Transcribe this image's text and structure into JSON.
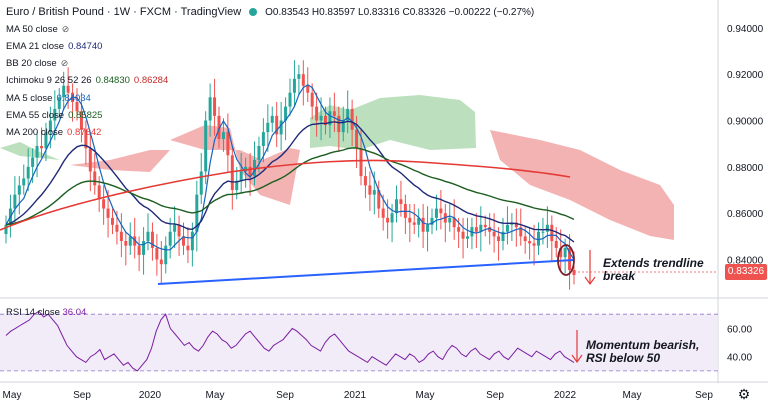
{
  "header": {
    "title": "Euro / British Pound · 1W · FXCM · TradingView",
    "ohlc": "O0.83543 H0.83597 L0.83316 C0.83326 −0.00222 (−0.27%)"
  },
  "legend": {
    "ma50": "MA 50 close",
    "ema21": "EMA 21 close",
    "ema21_val": "0.84740",
    "bb20": "BB 20 close",
    "ichimoku": "Ichimoku 9 26 52 26",
    "ichimoku_v1": "0.84830",
    "ichimoku_v2": "0.86284",
    "ma5": "MA 5 close",
    "ma5_val": "0.84034",
    "ema55": "EMA 55 close",
    "ema55_val": "0.85825",
    "ma200": "MA 200 close",
    "ma200_val": "0.87642"
  },
  "rsi_legend": {
    "name": "RSI 14 close",
    "val": "36.04"
  },
  "price_label": "0.83326",
  "annotations": {
    "trendline_1": "Extends trendline",
    "trendline_2": "break",
    "rsi_1": "Momentum bearish,",
    "rsi_2": "RSI below 50"
  },
  "colors": {
    "ema21": "#1e2a78",
    "ema55": "#1b5e20",
    "ma5": "#1565c0",
    "ma200": "#e53935",
    "trendline": "#2962ff",
    "cloud_bull": "#a5d6a7",
    "cloud_bear": "#ef9a9a",
    "rsi": "#7b1fa2",
    "up": "#26a69a",
    "down": "#ef5350",
    "price_label": "#ef5350",
    "annotation_arrow": "#e53935"
  },
  "chart_data": {
    "type": "candlestick",
    "x_ticks": [
      "May",
      "Sep",
      "2020",
      "May",
      "Sep",
      "2021",
      "May",
      "Sep",
      "2022",
      "May",
      "Sep"
    ],
    "y_ticks": [
      "0.94000",
      "0.92000",
      "0.90000",
      "0.88000",
      "0.86000",
      "0.84000"
    ],
    "ylim": [
      0.826,
      0.952
    ],
    "rsi_ticks": [
      "60.00",
      "40.00"
    ],
    "rsi_lim": [
      25,
      80
    ],
    "close": [
      0.855,
      0.862,
      0.868,
      0.872,
      0.875,
      0.88,
      0.884,
      0.889,
      0.888,
      0.895,
      0.9,
      0.905,
      0.91,
      0.915,
      0.912,
      0.908,
      0.904,
      0.896,
      0.888,
      0.878,
      0.872,
      0.866,
      0.862,
      0.858,
      0.855,
      0.852,
      0.848,
      0.846,
      0.85,
      0.846,
      0.842,
      0.848,
      0.852,
      0.845,
      0.84,
      0.838,
      0.846,
      0.852,
      0.855,
      0.85,
      0.846,
      0.844,
      0.852,
      0.868,
      0.878,
      0.9,
      0.91,
      0.902,
      0.892,
      0.895,
      0.885,
      0.87,
      0.874,
      0.878,
      0.88,
      0.876,
      0.883,
      0.889,
      0.895,
      0.899,
      0.902,
      0.894,
      0.9,
      0.906,
      0.912,
      0.918,
      0.92,
      0.915,
      0.912,
      0.906,
      0.9,
      0.902,
      0.898,
      0.904,
      0.902,
      0.895,
      0.9,
      0.905,
      0.896,
      0.888,
      0.876,
      0.872,
      0.868,
      0.87,
      0.862,
      0.858,
      0.856,
      0.86,
      0.866,
      0.864,
      0.858,
      0.856,
      0.855,
      0.858,
      0.852,
      0.855,
      0.858,
      0.862,
      0.86,
      0.856,
      0.858,
      0.854,
      0.852,
      0.849,
      0.85,
      0.854,
      0.852,
      0.855,
      0.854,
      0.852,
      0.85,
      0.848,
      0.852,
      0.855,
      0.856,
      0.854,
      0.85,
      0.848,
      0.847,
      0.846,
      0.852,
      0.852,
      0.855,
      0.848,
      0.845,
      0.841,
      0.845,
      0.8355,
      0.8333
    ],
    "rsi": [
      55,
      58,
      60,
      62,
      64,
      66,
      70,
      72,
      68,
      70,
      66,
      62,
      55,
      48,
      44,
      40,
      38,
      36,
      40,
      42,
      45,
      38,
      40,
      42,
      38,
      34,
      36,
      32,
      30,
      34,
      38,
      46,
      58,
      66,
      70,
      60,
      56,
      52,
      48,
      50,
      46,
      44,
      48,
      54,
      58,
      56,
      52,
      50,
      46,
      48,
      52,
      56,
      58,
      54,
      50,
      46,
      44,
      48,
      50,
      52,
      56,
      60,
      58,
      55,
      52,
      48,
      46,
      44,
      50,
      54,
      56,
      52,
      48,
      44,
      42,
      40,
      38,
      36,
      40,
      38,
      36,
      34,
      38,
      42,
      40,
      38,
      42,
      40,
      36,
      38,
      42,
      44,
      40,
      38,
      44,
      48,
      46,
      42,
      40,
      44,
      46,
      42,
      40,
      38,
      42,
      44,
      40,
      38,
      42,
      46,
      44,
      42,
      40,
      44,
      42,
      40,
      38,
      42,
      44,
      40,
      38,
      36
    ]
  }
}
